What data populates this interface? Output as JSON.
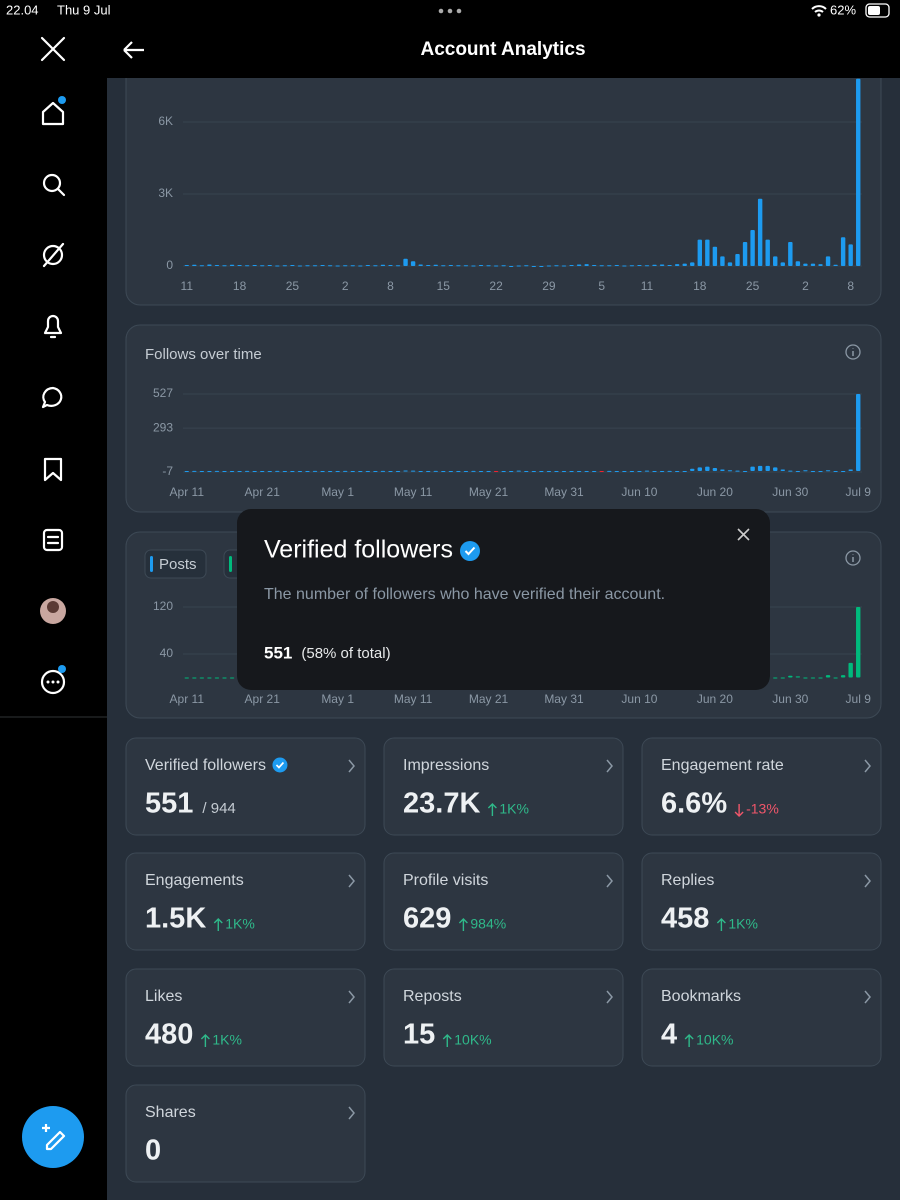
{
  "status_bar": {
    "time": "22.04",
    "date": "Thu 9 Jul",
    "battery": "62%"
  },
  "header": {
    "title": "Account Analytics"
  },
  "charts": [
    {
      "type": "bar",
      "color": "#1d9bf0",
      "categories": [
        "11",
        null,
        null,
        null,
        null,
        null,
        null,
        "18",
        null,
        null,
        null,
        null,
        null,
        null,
        "25",
        null,
        null,
        null,
        null,
        null,
        null,
        "2",
        null,
        null,
        null,
        null,
        null,
        "8",
        null,
        null,
        null,
        null,
        null,
        null,
        "15",
        null,
        null,
        null,
        null,
        null,
        null,
        "22",
        null,
        null,
        null,
        null,
        null,
        null,
        "29",
        null,
        null,
        null,
        null,
        null,
        null,
        "5",
        null,
        null,
        null,
        null,
        null,
        "11",
        null,
        null,
        null,
        null,
        null,
        null,
        "18",
        null,
        null,
        null,
        null,
        null,
        null,
        "25",
        null,
        null,
        null,
        null,
        null,
        null,
        "2",
        null,
        null,
        null,
        null,
        null,
        "8",
        null
      ],
      "values": [
        40,
        50,
        30,
        60,
        40,
        30,
        50,
        40,
        30,
        40,
        30,
        40,
        20,
        30,
        40,
        20,
        30,
        30,
        40,
        30,
        20,
        30,
        30,
        20,
        40,
        30,
        50,
        40,
        30,
        300,
        200,
        60,
        40,
        50,
        30,
        40,
        30,
        30,
        20,
        40,
        30,
        20,
        30,
        0,
        20,
        30,
        0,
        0,
        20,
        30,
        20,
        40,
        60,
        80,
        40,
        30,
        30,
        40,
        20,
        30,
        40,
        30,
        50,
        60,
        40,
        80,
        100,
        150,
        1100,
        1100,
        800,
        400,
        150,
        500,
        1000,
        1500,
        2800,
        1100,
        400,
        150,
        1000,
        200,
        100,
        100,
        80,
        400,
        50,
        1200,
        900,
        7800
      ],
      "ylim": [
        0,
        7833
      ],
      "yticks": [
        0,
        {
          "value": 3000,
          "label": "3K"
        },
        {
          "value": 6000,
          "label": "6K"
        }
      ]
    },
    {
      "type": "bar",
      "title": "Follows over time",
      "color": "#1d9bf0",
      "negative_color": "#f4212e",
      "categories": [
        "Apr 11",
        null,
        null,
        null,
        null,
        null,
        null,
        null,
        null,
        null,
        "Apr 21",
        null,
        null,
        null,
        null,
        null,
        null,
        null,
        null,
        null,
        "May 1",
        null,
        null,
        null,
        null,
        null,
        null,
        null,
        null,
        null,
        "May 11",
        null,
        null,
        null,
        null,
        null,
        null,
        null,
        null,
        null,
        "May 21",
        null,
        null,
        null,
        null,
        null,
        null,
        null,
        null,
        null,
        "May 31",
        null,
        null,
        null,
        null,
        null,
        null,
        null,
        null,
        null,
        "Jun 10",
        null,
        null,
        null,
        null,
        null,
        null,
        null,
        null,
        null,
        "Jun 20",
        null,
        null,
        null,
        null,
        null,
        null,
        null,
        null,
        null,
        "Jun 30",
        null,
        null,
        null,
        null,
        null,
        null,
        null,
        null,
        "Jul 9"
      ],
      "values": [
        0,
        1,
        0,
        0,
        1,
        0,
        0,
        0,
        1,
        0,
        0,
        0,
        1,
        0,
        0,
        0,
        0,
        1,
        0,
        0,
        0,
        1,
        0,
        0,
        0,
        0,
        1,
        0,
        0,
        3,
        2,
        0,
        0,
        1,
        0,
        0,
        0,
        0,
        1,
        0,
        0,
        -3,
        0,
        0,
        2,
        0,
        0,
        0,
        0,
        0,
        0,
        0,
        0,
        0,
        0,
        -2,
        1,
        0,
        0,
        0,
        0,
        2,
        0,
        0,
        1,
        0,
        0,
        15,
        25,
        30,
        20,
        10,
        5,
        2,
        0,
        30,
        35,
        35,
        25,
        10,
        2,
        0,
        5,
        0,
        0,
        5,
        0,
        0,
        10,
        527
      ],
      "ylim": [
        -7,
        527
      ],
      "yticks": [
        -7,
        293,
        527
      ]
    },
    {
      "type": "bar",
      "legend": "Posts",
      "legend_color": "#1d9bf0",
      "color": "#00ba7c",
      "categories": [
        "Apr 11",
        null,
        null,
        null,
        null,
        null,
        null,
        null,
        null,
        null,
        "Apr 21",
        null,
        null,
        null,
        null,
        null,
        null,
        null,
        null,
        null,
        "May 1",
        null,
        null,
        null,
        null,
        null,
        null,
        null,
        null,
        null,
        "May 11",
        null,
        null,
        null,
        null,
        null,
        null,
        null,
        null,
        null,
        "May 21",
        null,
        null,
        null,
        null,
        null,
        null,
        null,
        null,
        null,
        "May 31",
        null,
        null,
        null,
        null,
        null,
        null,
        null,
        null,
        null,
        "Jun 10",
        null,
        null,
        null,
        null,
        null,
        null,
        null,
        null,
        null,
        "Jun 20",
        null,
        null,
        null,
        null,
        null,
        null,
        null,
        null,
        null,
        "Jun 30",
        null,
        null,
        null,
        null,
        null,
        null,
        null,
        null,
        "Jul 9"
      ],
      "values": [
        0,
        0,
        0,
        0,
        0,
        0,
        0,
        0,
        0,
        0,
        0,
        0,
        0,
        0,
        0,
        0,
        0,
        0,
        0,
        0,
        0,
        0,
        0,
        0,
        0,
        0,
        0,
        0,
        0,
        0,
        0,
        0,
        0,
        0,
        0,
        0,
        0,
        0,
        0,
        0,
        0,
        0,
        0,
        0,
        0,
        0,
        0,
        0,
        0,
        0,
        0,
        0,
        0,
        0,
        0,
        0,
        0,
        0,
        0,
        0,
        0,
        0,
        0,
        0,
        0,
        0,
        0,
        0,
        0,
        0,
        0,
        0,
        0,
        0,
        0,
        0,
        0,
        0,
        0,
        0,
        3,
        2,
        0,
        0,
        0,
        4,
        0,
        4,
        25,
        120
      ],
      "ylim": [
        0,
        120
      ],
      "yticks": [
        40,
        120
      ]
    }
  ],
  "tooltip": {
    "title": "Verified followers",
    "description": "The number of followers who have verified their account.",
    "value": "551",
    "share": "(58% of total)"
  },
  "metrics": [
    {
      "label": "Verified followers",
      "verified": true,
      "value": "551",
      "sub": "/ 944"
    },
    {
      "label": "Impressions",
      "value": "23.7K",
      "change": "1K%",
      "direction": "up"
    },
    {
      "label": "Engagement rate",
      "value": "6.6%",
      "change": "-13%",
      "direction": "down"
    },
    {
      "label": "Engagements",
      "value": "1.5K",
      "change": "1K%",
      "direction": "up"
    },
    {
      "label": "Profile visits",
      "value": "629",
      "change": "984%",
      "direction": "up"
    },
    {
      "label": "Replies",
      "value": "458",
      "change": "1K%",
      "direction": "up"
    },
    {
      "label": "Likes",
      "value": "480",
      "change": "1K%",
      "direction": "up"
    },
    {
      "label": "Reposts",
      "value": "15",
      "change": "10K%",
      "direction": "up"
    },
    {
      "label": "Bookmarks",
      "value": "4",
      "change": "10K%",
      "direction": "up"
    },
    {
      "label": "Shares",
      "value": "0"
    }
  ]
}
